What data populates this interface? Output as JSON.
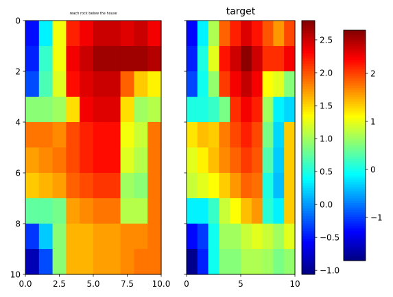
{
  "chart_data": [
    {
      "type": "heatmap",
      "title": "reach rock below the house",
      "xlim": [
        0,
        10
      ],
      "ylim": [
        10,
        0
      ],
      "xticks": [
        "0.0",
        "2.5",
        "5.0",
        "7.5",
        "10.0"
      ],
      "yticks": [
        "0",
        "2",
        "4",
        "6",
        "8",
        "10"
      ],
      "values": [
        [
          -1.2,
          -0.1,
          1.1,
          2.2,
          2.4,
          2.6,
          2.6,
          2.5,
          2.6,
          2.4
        ],
        [
          -1.1,
          0.2,
          1.1,
          2.4,
          2.6,
          2.8,
          2.8,
          2.8,
          2.8,
          2.7
        ],
        [
          -0.9,
          0.3,
          1.0,
          2.3,
          2.5,
          2.6,
          2.6,
          1.9,
          1.4,
          1.2
        ],
        [
          0.6,
          0.6,
          0.7,
          1.3,
          2.4,
          2.5,
          2.5,
          1.3,
          0.7,
          0.8
        ],
        [
          1.8,
          1.8,
          1.7,
          2.0,
          2.2,
          2.3,
          2.3,
          1.1,
          0.9,
          1.8
        ],
        [
          1.6,
          1.7,
          1.8,
          2.0,
          2.2,
          2.3,
          2.3,
          1.0,
          0.8,
          1.8
        ],
        [
          1.4,
          1.5,
          1.6,
          1.9,
          2.0,
          2.1,
          2.1,
          0.7,
          0.6,
          1.8
        ],
        [
          0.4,
          0.4,
          0.5,
          1.6,
          1.7,
          1.8,
          1.8,
          0.8,
          0.8,
          1.8
        ],
        [
          -1.0,
          -0.3,
          0.6,
          1.5,
          1.5,
          1.6,
          1.6,
          1.7,
          1.7,
          1.8
        ],
        [
          -1.6,
          -0.9,
          0.6,
          1.5,
          1.5,
          1.6,
          1.6,
          1.7,
          1.8,
          1.8
        ]
      ]
    },
    {
      "type": "heatmap",
      "title": "target",
      "xlim": [
        0,
        10
      ],
      "ylim": [
        10,
        0
      ],
      "xticks": [
        "0",
        "5",
        "10"
      ],
      "yticks": [
        "0",
        "2",
        "4",
        "6",
        "8",
        "10"
      ],
      "values": [
        [
          -0.55,
          0.35,
          1.05,
          1.95,
          2.2,
          2.45,
          2.25,
          2.0,
          1.75,
          2.05
        ],
        [
          -0.45,
          0.5,
          1.25,
          2.25,
          2.5,
          2.75,
          2.5,
          2.15,
          2.15,
          2.35
        ],
        [
          -0.3,
          0.45,
          0.95,
          2.1,
          2.35,
          2.55,
          2.35,
          1.35,
          1.25,
          0.9
        ],
        [
          0.5,
          0.5,
          0.6,
          0.85,
          2.15,
          2.35,
          2.2,
          1.0,
          0.35,
          0.25
        ],
        [
          1.45,
          1.6,
          1.55,
          1.85,
          2.05,
          2.2,
          2.05,
          0.85,
          0.25,
          1.55
        ],
        [
          1.25,
          1.4,
          1.6,
          1.8,
          1.95,
          2.1,
          2.0,
          0.7,
          0.2,
          1.55
        ],
        [
          1.15,
          1.25,
          1.35,
          1.55,
          1.75,
          1.95,
          1.9,
          0.5,
          0.15,
          1.55
        ],
        [
          0.35,
          0.35,
          0.6,
          1.15,
          1.35,
          1.6,
          1.75,
          0.55,
          0.35,
          1.55
        ],
        [
          -0.55,
          -0.35,
          0.45,
          1.0,
          1.0,
          1.15,
          1.25,
          1.15,
          1.0,
          1.25
        ],
        [
          -1.0,
          -0.45,
          0.45,
          0.9,
          0.9,
          1.05,
          1.05,
          1.0,
          0.85,
          0.95
        ]
      ]
    },
    {
      "type": "colorbar",
      "colormap": "jet",
      "range": [
        -1.05,
        2.8
      ],
      "ticks": [
        "−1.0",
        "−0.5",
        "0.0",
        "0.5",
        "1.0",
        "1.5",
        "2.0",
        "2.5"
      ],
      "tick_values": [
        -1.0,
        -0.5,
        0.0,
        0.5,
        1.0,
        1.5,
        2.0,
        2.5
      ]
    },
    {
      "type": "colorbar",
      "colormap": "jet",
      "range": [
        -1.85,
        2.95
      ],
      "ticks": [
        "−1",
        "0",
        "1",
        "2"
      ],
      "tick_values": [
        -1,
        0,
        1,
        2
      ]
    }
  ]
}
